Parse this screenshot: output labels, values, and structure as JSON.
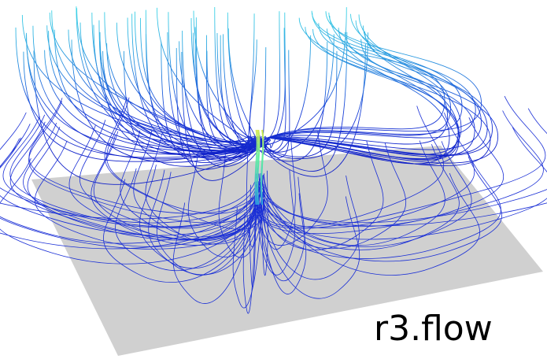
{
  "label": "r3.flow"
}
